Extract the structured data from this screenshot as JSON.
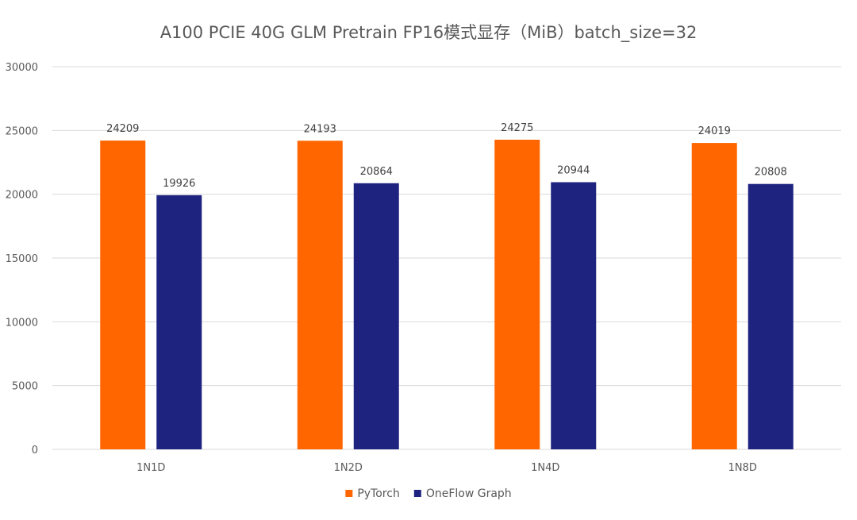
{
  "chart_data": {
    "type": "bar",
    "title": "A100 PCIE 40G GLM Pretrain FP16模式显存（MiB）batch_size=32",
    "categories": [
      "1N1D",
      "1N2D",
      "1N4D",
      "1N8D"
    ],
    "series": [
      {
        "name": "PyTorch",
        "color": "#FF6600",
        "values": [
          24209,
          24193,
          24275,
          24019
        ]
      },
      {
        "name": "OneFlow Graph",
        "color": "#1F2380",
        "values": [
          19926,
          20864,
          20944,
          20808
        ]
      }
    ],
    "xlabel": "",
    "ylabel": "",
    "ylim": [
      0,
      30000
    ],
    "yticks": [
      0,
      5000,
      10000,
      15000,
      20000,
      25000,
      30000
    ],
    "grid": true,
    "legend_position": "bottom-center",
    "gridline_color": "#D9D9D9",
    "text_color": "#595959"
  }
}
